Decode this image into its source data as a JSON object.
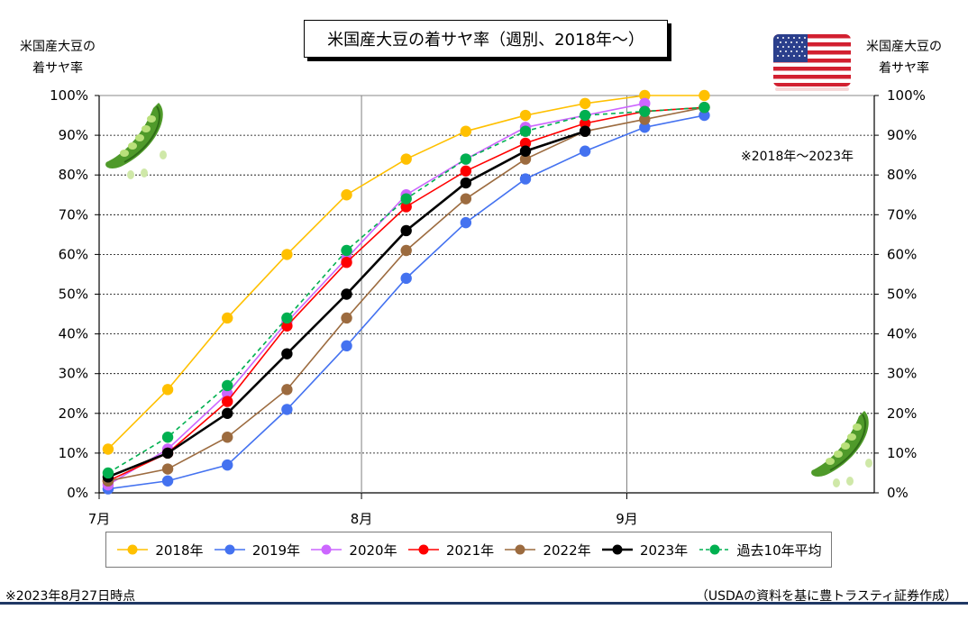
{
  "title": "米国産大豆の着サヤ率（週別、2018年～）",
  "left_axis_title": [
    "米国産大豆の",
    "着サヤ率"
  ],
  "right_axis_title": [
    "米国産大豆の",
    "着サヤ率"
  ],
  "note_range": "※2018年～2023年",
  "note_date": "※2023年8月27日時点",
  "source": "（USDAの資料を基に豊トラスティ証券作成）",
  "icons": [
    "us-flag-icon",
    "soybean-pod-icon"
  ],
  "chart_data": {
    "type": "line",
    "x_ticks": [
      {
        "label": "7月",
        "week": 0
      },
      {
        "label": "8月",
        "week": 4.4
      },
      {
        "label": "9月",
        "week": 8.85
      }
    ],
    "xlim": [
      0,
      13
    ],
    "y_ticks": [
      "0%",
      "10%",
      "20%",
      "30%",
      "40%",
      "50%",
      "60%",
      "70%",
      "80%",
      "90%",
      "100%"
    ],
    "ylim": [
      0,
      100
    ],
    "grid": true,
    "legend_position": "bottom",
    "series": [
      {
        "name": "2018年",
        "color": "#ffc000",
        "dash": false,
        "x": [
          0.15,
          1.15,
          2.15,
          3.15,
          4.15,
          5.15,
          6.15,
          7.15,
          8.15,
          9.15,
          10.15
        ],
        "values": [
          11,
          26,
          44,
          60,
          75,
          84,
          91,
          95,
          98,
          100,
          100
        ]
      },
      {
        "name": "2019年",
        "color": "#4472f0",
        "dash": false,
        "x": [
          0.15,
          1.15,
          2.15,
          3.15,
          4.15,
          5.15,
          6.15,
          7.15,
          8.15,
          9.15,
          10.15
        ],
        "values": [
          1,
          3,
          7,
          21,
          37,
          54,
          68,
          79,
          86,
          92,
          95
        ]
      },
      {
        "name": "2020年",
        "color": "#cc66ff",
        "dash": false,
        "x": [
          0.15,
          1.15,
          2.15,
          3.15,
          4.15,
          5.15,
          6.15,
          7.15,
          8.15,
          9.15
        ],
        "values": [
          2,
          11,
          25,
          43,
          59,
          75,
          84,
          92,
          95,
          98
        ]
      },
      {
        "name": "2021年",
        "color": "#ff0000",
        "dash": false,
        "x": [
          0.15,
          1.15,
          2.15,
          3.15,
          4.15,
          5.15,
          6.15,
          7.15,
          8.15,
          9.15,
          10.15
        ],
        "values": [
          3,
          10,
          23,
          42,
          58,
          72,
          81,
          88,
          93,
          96,
          97
        ]
      },
      {
        "name": "2022年",
        "color": "#9c6b3f",
        "dash": false,
        "x": [
          0.15,
          1.15,
          2.15,
          3.15,
          4.15,
          5.15,
          6.15,
          7.15,
          8.15,
          9.15,
          10.15
        ],
        "values": [
          3,
          6,
          14,
          26,
          44,
          61,
          74,
          84,
          91,
          94,
          97
        ]
      },
      {
        "name": "2023年",
        "color": "#000000",
        "dash": false,
        "x": [
          0.15,
          1.15,
          2.15,
          3.15,
          4.15,
          5.15,
          6.15,
          7.15,
          8.15
        ],
        "values": [
          4,
          10,
          20,
          35,
          50,
          66,
          78,
          86,
          91
        ]
      },
      {
        "name": "過去10年平均",
        "color": "#00b050",
        "dash": true,
        "x": [
          0.15,
          1.15,
          2.15,
          3.15,
          4.15,
          5.15,
          6.15,
          7.15,
          8.15,
          9.15,
          10.15
        ],
        "values": [
          5,
          14,
          27,
          44,
          61,
          74,
          84,
          91,
          95,
          96,
          97
        ]
      }
    ]
  }
}
